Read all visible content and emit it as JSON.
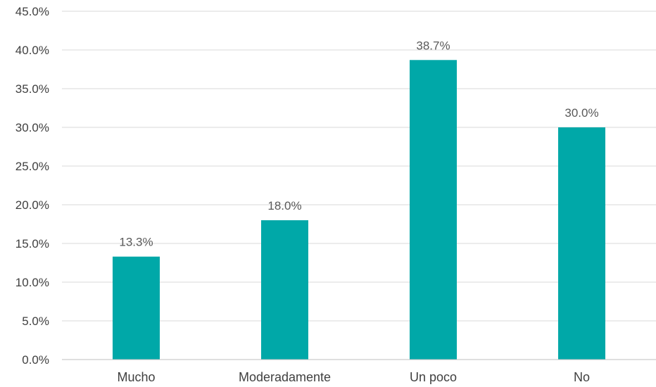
{
  "chart_data": {
    "type": "bar",
    "title": "",
    "xlabel": "",
    "ylabel": "",
    "categories": [
      "Mucho",
      "Moderadamente",
      "Un poco",
      "No"
    ],
    "values": [
      13.3,
      18.0,
      38.7,
      30.0
    ],
    "data_labels": [
      "13.3%",
      "18.0%",
      "38.7%",
      "30.0%"
    ],
    "ylim": [
      0,
      45
    ],
    "y_ticks": [
      0,
      5,
      10,
      15,
      20,
      25,
      30,
      35,
      40,
      45
    ],
    "y_tick_labels": [
      "0.0%",
      "5.0%",
      "10.0%",
      "15.0%",
      "20.0%",
      "25.0%",
      "30.0%",
      "35.0%",
      "40.0%",
      "45.0%"
    ],
    "bar_color": "#00a8a8",
    "grid": true,
    "legend": "none"
  }
}
